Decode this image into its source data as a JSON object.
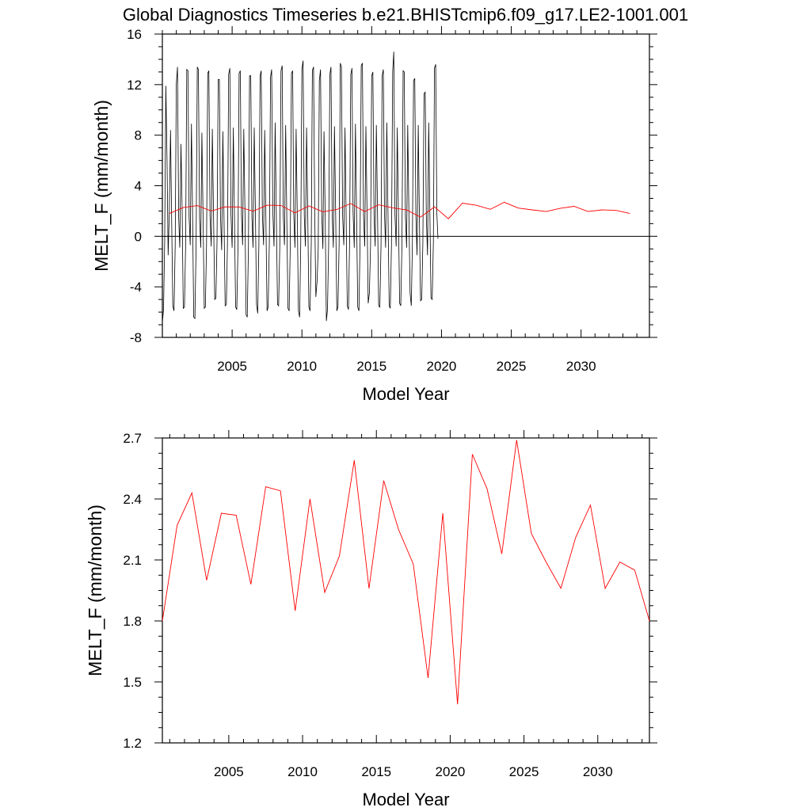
{
  "title": "Global Diagnostics Timeseries b.e21.BHISTcmip6.f09_g17.LE2-1001.001",
  "chart_data": [
    {
      "type": "line",
      "ylabel": "MELT_F (mm/month)",
      "xlabel": "Model Year",
      "xlim": [
        2000.0,
        2034.9
      ],
      "ylim": [
        -8,
        16
      ],
      "x_ticks": [
        "2005",
        "2010",
        "2015",
        "2020",
        "2025",
        "2030"
      ],
      "y_ticks": [
        "-8",
        "-4",
        "0",
        "4",
        "8",
        "12",
        "16"
      ],
      "zero_line": true,
      "series": [
        {
          "style": "monthly",
          "color": "#000000",
          "x_start": 2000.0,
          "step": 0.0833333,
          "values": [
            -6.8,
            -5.8,
            -0.5,
            11.9,
            6.0,
            -1.5,
            2.0,
            8.4,
            1.5,
            -5.5,
            -5.9,
            -0.8,
            12.0,
            13.4,
            1.5,
            -0.9,
            7.3,
            2.0,
            -5.7,
            -5.6,
            -0.6,
            13.2,
            13.1,
            1.5,
            -0.7,
            8.9,
            1.5,
            -6.4,
            -6.5,
            -0.8,
            13.4,
            13.2,
            1.4,
            -0.9,
            8.2,
            1.6,
            -5.7,
            -5.6,
            -0.6,
            12.9,
            13.1,
            1.6,
            -0.8,
            8.5,
            1.8,
            -5.0,
            -4.9,
            -0.5,
            12.4,
            12.4,
            1.6,
            -1.1,
            8.3,
            1.6,
            -5.5,
            -5.4,
            -0.6,
            12.8,
            13.3,
            1.8,
            -0.9,
            8.6,
            1.6,
            -5.6,
            -5.8,
            -0.8,
            12.9,
            13.1,
            1.7,
            -0.7,
            8.5,
            1.9,
            -6.2,
            -6.4,
            -0.8,
            12.7,
            12.7,
            1.5,
            -0.9,
            8.6,
            1.8,
            -5.4,
            -6.1,
            -0.6,
            12.7,
            13.1,
            1.7,
            -0.7,
            8.4,
            1.5,
            -5.9,
            -5.6,
            -0.4,
            12.6,
            13.2,
            1.9,
            -0.8,
            9.0,
            1.6,
            -5.4,
            -5.5,
            -0.7,
            13.1,
            13.5,
            1.6,
            -0.7,
            8.8,
            1.6,
            -5.7,
            -5.9,
            -0.7,
            12.9,
            13.1,
            1.8,
            -0.9,
            8.5,
            1.9,
            -5.9,
            -6.4,
            -0.7,
            13.2,
            13.9,
            1.6,
            -0.8,
            8.6,
            1.7,
            -5.6,
            -5.9,
            -0.6,
            13.1,
            13.4,
            1.7,
            -4.8,
            -3.6,
            -1.0,
            12.3,
            13.2,
            1.8,
            -1.0,
            8.3,
            1.7,
            -6.7,
            -5.8,
            -0.5,
            12.8,
            13.4,
            1.8,
            -0.9,
            8.7,
            1.9,
            -5.9,
            -5.6,
            -0.6,
            13.7,
            13.4,
            1.6,
            -0.7,
            8.6,
            1.7,
            -5.5,
            -5.8,
            -0.5,
            12.8,
            13.3,
            1.9,
            -0.9,
            8.9,
            1.8,
            -5.6,
            -5.9,
            -0.6,
            13.5,
            13.7,
            1.7,
            -0.8,
            8.7,
            1.6,
            -5.3,
            -4.5,
            -0.7,
            12.7,
            13.0,
            1.6,
            -0.8,
            8.8,
            1.8,
            -5.5,
            -5.6,
            -0.7,
            12.7,
            13.2,
            1.8,
            -0.9,
            9.0,
            1.7,
            -5.5,
            -5.7,
            -0.6,
            13.0,
            14.6,
            1.7,
            -0.8,
            8.6,
            1.6,
            -5.3,
            -5.5,
            -0.7,
            13.1,
            13.0,
            1.6,
            -0.9,
            8.8,
            1.8,
            -4.5,
            -5.5,
            -0.6,
            12.3,
            12.5,
            1.7,
            -1.5,
            8.8,
            1.7,
            -5.1,
            -5.0,
            -0.6,
            11.3,
            11.4,
            1.6,
            -1.5,
            9.0,
            1.7,
            -4.9,
            -5.0,
            -0.5,
            13.3,
            13.6,
            1.8,
            -0.2
          ]
        },
        {
          "style": "annual",
          "color": "#ff0000",
          "x_start": 2000.5,
          "step": 1,
          "values": [
            1.8,
            2.27,
            2.43,
            2.0,
            2.33,
            2.32,
            1.98,
            2.46,
            2.44,
            1.85,
            2.4,
            1.94,
            2.12,
            2.59,
            1.96,
            2.49,
            2.25,
            2.08,
            1.52,
            2.33,
            1.39,
            2.62,
            2.45,
            2.13,
            2.69,
            2.23,
            2.09,
            1.96,
            2.21,
            2.37,
            1.96,
            2.09,
            2.05,
            1.8
          ]
        }
      ]
    },
    {
      "type": "line",
      "ylabel": "MELT_F (mm/month)",
      "xlabel": "Model Year",
      "xlim": [
        2000.5,
        2033.5
      ],
      "ylim": [
        1.2,
        2.7
      ],
      "x_ticks": [
        "2005",
        "2010",
        "2015",
        "2020",
        "2025",
        "2030"
      ],
      "y_ticks": [
        "1.2",
        "1.5",
        "1.8",
        "2.1",
        "2.4",
        "2.7"
      ],
      "series": [
        {
          "style": "annual",
          "color": "#ff0000",
          "x_start": 2000.5,
          "step": 1,
          "values": [
            1.8,
            2.27,
            2.43,
            2.0,
            2.33,
            2.32,
            1.98,
            2.46,
            2.44,
            1.85,
            2.4,
            1.94,
            2.12,
            2.59,
            1.96,
            2.49,
            2.25,
            2.08,
            1.52,
            2.33,
            1.39,
            2.62,
            2.45,
            2.13,
            2.69,
            2.23,
            2.09,
            1.96,
            2.21,
            2.37,
            1.96,
            2.09,
            2.05,
            1.8
          ]
        }
      ]
    }
  ]
}
